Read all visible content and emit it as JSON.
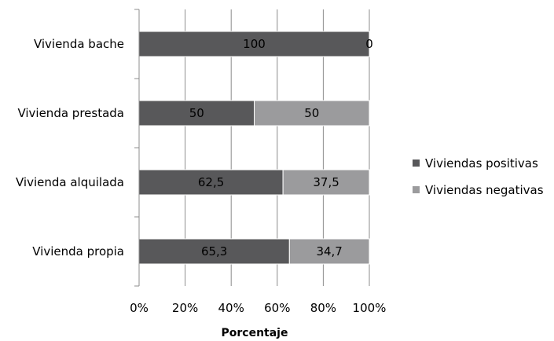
{
  "chart_data": {
    "type": "bar",
    "orientation": "horizontal",
    "stacked": true,
    "categories": [
      "Vivienda bache",
      "Vivienda prestada",
      "Vivienda alquilada",
      "Vivienda propia"
    ],
    "series": [
      {
        "name": "Viviendas positivas",
        "values": [
          100,
          50,
          62.5,
          65.3
        ],
        "labels": [
          "100",
          "50",
          "62,5",
          "65,3"
        ],
        "color": "#58585a"
      },
      {
        "name": "Viviendas negativas",
        "values": [
          0,
          50,
          37.5,
          34.7
        ],
        "labels": [
          "0",
          "50",
          "37,5",
          "34,7"
        ],
        "color": "#9b9b9d"
      }
    ],
    "x_ticks": [
      "0%",
      "20%",
      "40%",
      "60%",
      "80%",
      "100%"
    ],
    "xlabel": "Porcentaje",
    "ylabel": "",
    "xlim": [
      0,
      100
    ],
    "grid": true,
    "legend_position": "right"
  }
}
